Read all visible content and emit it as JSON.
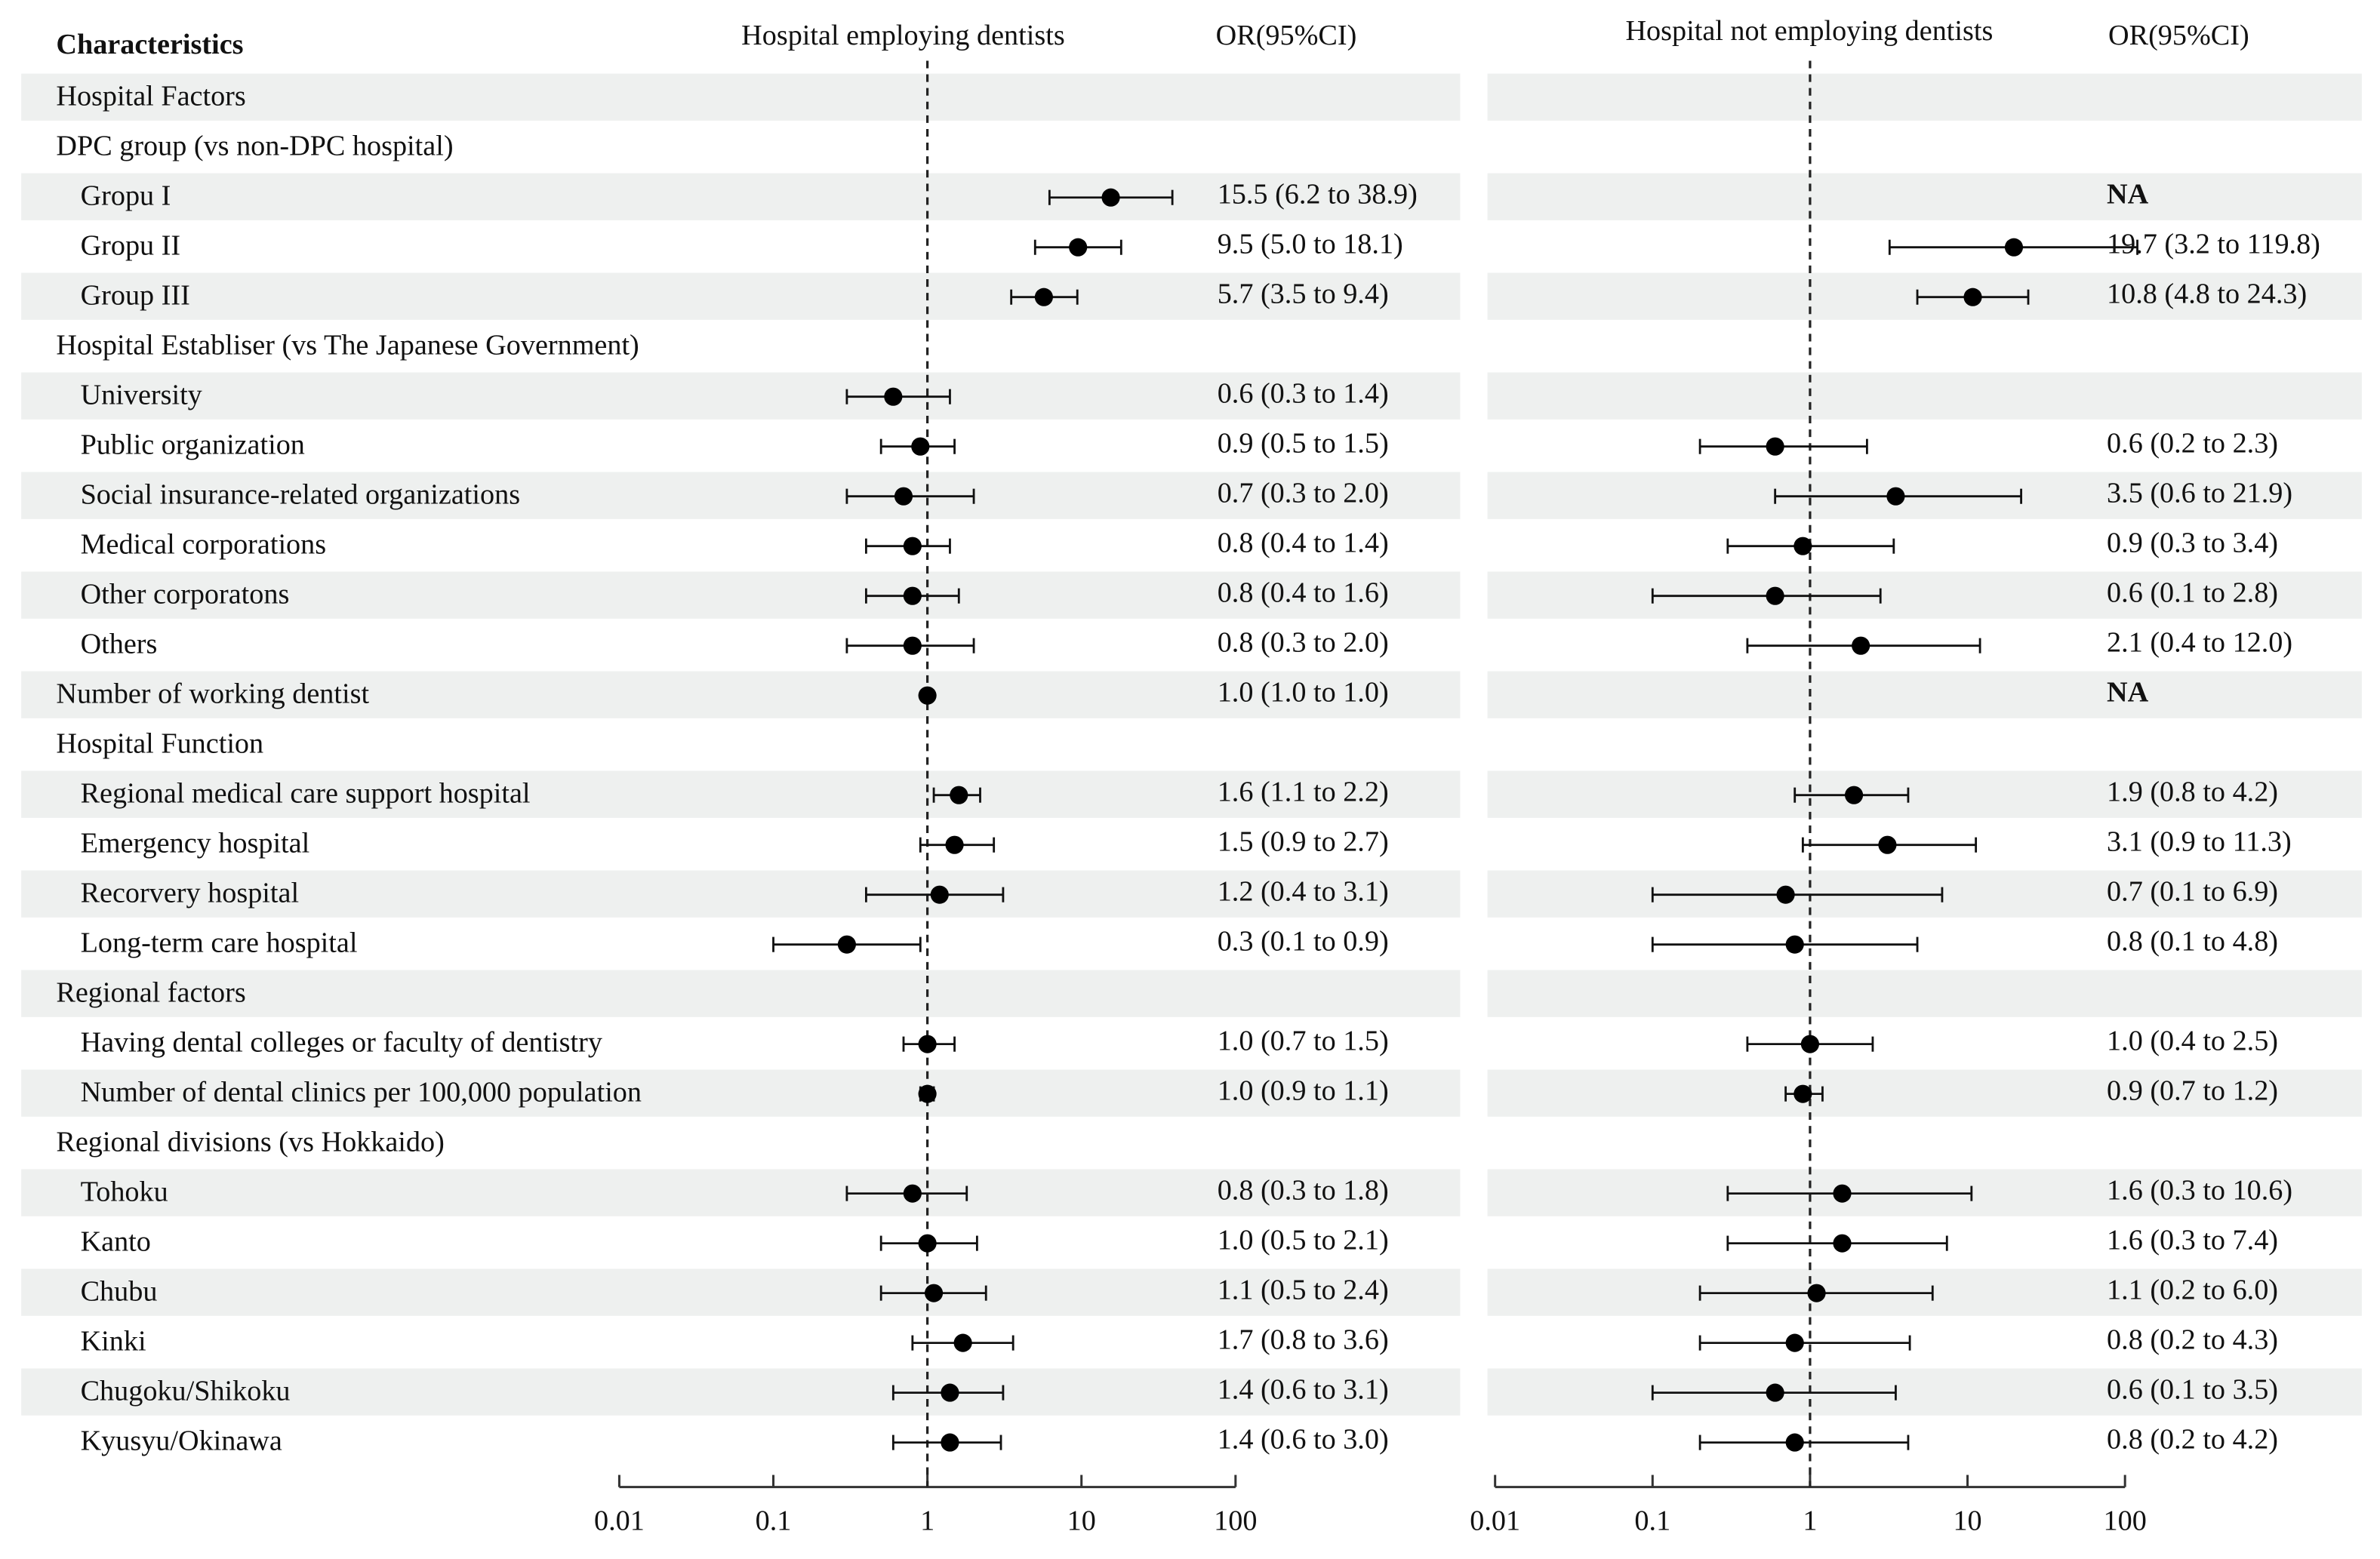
{
  "chart_data": {
    "type": "forest",
    "title": "Characteristics",
    "categories": [
      "Hospital Factors",
      "DPC group (vs non-DPC hospital)",
      "Gropu I",
      "Gropu II",
      "Group III",
      "Hospital Establiser (vs The Japanese Government)",
      "University",
      "Public organization",
      "Social insurance-related organizations",
      "Medical corporations",
      "Other corporatons",
      "Others",
      "Number of working dentist",
      "Hospital Function",
      "Regional medical care support hospital",
      "Emergency hospital",
      "Recorvery hospital",
      "Long-term care hospital",
      "Regional factors",
      "Having dental colleges or faculty of dentistry",
      "Number of dental clinics per 100,000 population",
      "Regional divisions (vs Hokkaido)",
      "Tohoku",
      "Kanto",
      "Chubu",
      "Kinki",
      "Chugoku/Shikoku",
      "Kyusyu/Okinawa"
    ],
    "log_scale": true,
    "reference": 1,
    "panels": [
      {
        "name": "Hospital employing dentists",
        "ci_header": "OR(95%CI)",
        "values": [
          null,
          null,
          15.5,
          9.5,
          5.7,
          null,
          0.6,
          0.9,
          0.7,
          0.8,
          0.8,
          0.8,
          1.0,
          null,
          1.6,
          1.5,
          1.2,
          0.3,
          null,
          1.0,
          1.0,
          null,
          0.8,
          1.0,
          1.1,
          1.7,
          1.4,
          1.4
        ],
        "lower": [
          null,
          null,
          6.2,
          5.0,
          3.5,
          null,
          0.3,
          0.5,
          0.3,
          0.4,
          0.4,
          0.3,
          1.0,
          null,
          1.1,
          0.9,
          0.4,
          0.1,
          null,
          0.7,
          0.9,
          null,
          0.3,
          0.5,
          0.5,
          0.8,
          0.6,
          0.6
        ],
        "upper": [
          null,
          null,
          38.9,
          18.1,
          9.4,
          null,
          1.4,
          1.5,
          2.0,
          1.4,
          1.6,
          2.0,
          1.0,
          null,
          2.2,
          2.7,
          3.1,
          0.9,
          null,
          1.5,
          1.1,
          null,
          1.8,
          2.1,
          2.4,
          3.6,
          3.1,
          3.0
        ],
        "value_labels": [
          null,
          null,
          "15.5 (6.2 to 38.9)",
          "9.5 (5.0 to 18.1)",
          "5.7 (3.5 to 9.4)",
          null,
          "0.6 (0.3 to 1.4)",
          "0.9 (0.5 to 1.5)",
          "0.7 (0.3 to 2.0)",
          "0.8 (0.4 to 1.4)",
          "0.8 (0.4 to 1.6)",
          "0.8 (0.3 to 2.0)",
          "1.0 (1.0 to 1.0)",
          null,
          "1.6 (1.1 to 2.2)",
          "1.5 (0.9 to 2.7)",
          "1.2 (0.4 to 3.1)",
          "0.3 (0.1 to 0.9)",
          null,
          "1.0 (0.7 to 1.5)",
          "1.0 (0.9 to 1.1)",
          null,
          "0.8 (0.3 to 1.8)",
          "1.0 (0.5 to 2.1)",
          "1.1 (0.5 to 2.4)",
          "1.7 (0.8 to 3.6)",
          "1.4 (0.6 to 3.1)",
          "1.4 (0.6 to 3.0)"
        ],
        "xlim": [
          0.01,
          100
        ],
        "xticks": [
          0.01,
          0.1,
          1,
          10,
          100
        ]
      },
      {
        "name": "Hospital not employing dentists",
        "ci_header": "OR(95%CI)",
        "values": [
          null,
          null,
          null,
          19.7,
          10.8,
          null,
          null,
          0.6,
          3.5,
          0.9,
          0.6,
          2.1,
          null,
          null,
          1.9,
          3.1,
          0.7,
          0.8,
          null,
          1.0,
          0.9,
          null,
          1.6,
          1.6,
          1.1,
          0.8,
          0.6,
          0.8
        ],
        "lower": [
          null,
          null,
          null,
          3.2,
          4.8,
          null,
          null,
          0.2,
          0.6,
          0.3,
          0.1,
          0.4,
          null,
          null,
          0.8,
          0.9,
          0.1,
          0.1,
          null,
          0.4,
          0.7,
          null,
          0.3,
          0.3,
          0.2,
          0.2,
          0.1,
          0.2
        ],
        "upper": [
          null,
          null,
          null,
          119.8,
          24.3,
          null,
          null,
          2.3,
          21.9,
          3.4,
          2.8,
          12.0,
          null,
          null,
          4.2,
          11.3,
          6.9,
          4.8,
          null,
          2.5,
          1.2,
          null,
          10.6,
          7.4,
          6.0,
          4.3,
          3.5,
          4.2
        ],
        "value_labels": [
          null,
          null,
          "NA",
          "19.7 (3.2 to 119.8)",
          "10.8 (4.8 to 24.3)",
          null,
          null,
          "0.6 (0.2 to 2.3)",
          "3.5 (0.6 to 21.9)",
          "0.9 (0.3 to 3.4)",
          "0.6 (0.1 to 2.8)",
          "2.1 (0.4 to 12.0)",
          "NA",
          null,
          "1.9 (0.8 to 4.2)",
          "3.1 (0.9 to 11.3)",
          "0.7 (0.1 to 6.9)",
          "0.8 (0.1 to 4.8)",
          null,
          "1.0 (0.4 to 2.5)",
          "0.9 (0.7 to 1.2)",
          null,
          "1.6 (0.3 to 10.6)",
          "1.6 (0.3 to 7.4)",
          "1.1 (0.2 to 6.0)",
          "0.8 (0.2 to 4.3)",
          "0.6 (0.1 to 3.5)",
          "0.8 (0.2 to 4.2)"
        ],
        "xlim": [
          0.01,
          100
        ],
        "xticks": [
          0.01,
          0.1,
          1,
          10,
          100
        ]
      }
    ]
  }
}
